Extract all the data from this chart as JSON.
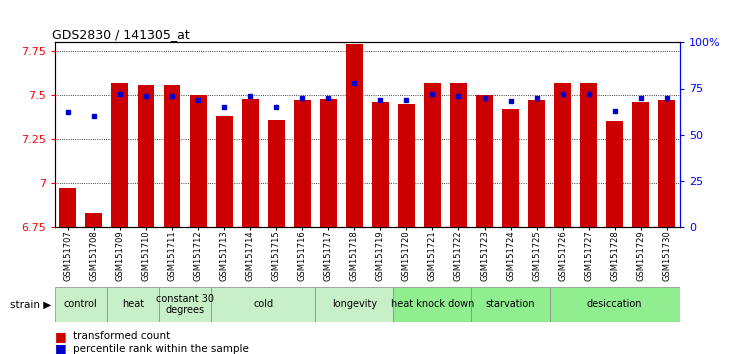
{
  "title": "GDS2830 / 141305_at",
  "samples": [
    "GSM151707",
    "GSM151708",
    "GSM151709",
    "GSM151710",
    "GSM151711",
    "GSM151712",
    "GSM151713",
    "GSM151714",
    "GSM151715",
    "GSM151716",
    "GSM151717",
    "GSM151718",
    "GSM151719",
    "GSM151720",
    "GSM151721",
    "GSM151722",
    "GSM151723",
    "GSM151724",
    "GSM151725",
    "GSM151726",
    "GSM151727",
    "GSM151728",
    "GSM151729",
    "GSM151730"
  ],
  "red_values": [
    6.97,
    6.83,
    7.57,
    7.56,
    7.56,
    7.5,
    7.38,
    7.48,
    7.36,
    7.47,
    7.48,
    7.79,
    7.46,
    7.45,
    7.57,
    7.57,
    7.5,
    7.42,
    7.47,
    7.57,
    7.57,
    7.35,
    7.46,
    7.47
  ],
  "blue_percentile": [
    62,
    60,
    72,
    71,
    71,
    69,
    65,
    71,
    65,
    70,
    70,
    78,
    69,
    69,
    72,
    71,
    70,
    68,
    70,
    72,
    72,
    63,
    70,
    70
  ],
  "y_min": 6.75,
  "y_max": 7.8,
  "y_ticks": [
    6.75,
    7.0,
    7.25,
    7.5,
    7.75
  ],
  "y_tick_labels": [
    "6.75",
    "7",
    "7.25",
    "7.5",
    "7.75"
  ],
  "right_y_ticks": [
    0,
    25,
    50,
    75,
    100
  ],
  "right_y_labels": [
    "0",
    "25",
    "50",
    "75",
    "100%"
  ],
  "groups": [
    {
      "label": "control",
      "start": 0,
      "end": 1,
      "color": "#c8f0c8"
    },
    {
      "label": "heat",
      "start": 2,
      "end": 3,
      "color": "#c8f0c8"
    },
    {
      "label": "constant 30\ndegrees",
      "start": 4,
      "end": 5,
      "color": "#c8f0c8"
    },
    {
      "label": "cold",
      "start": 6,
      "end": 9,
      "color": "#c8f0c8"
    },
    {
      "label": "longevity",
      "start": 10,
      "end": 12,
      "color": "#c8f0c8"
    },
    {
      "label": "heat knock down",
      "start": 13,
      "end": 15,
      "color": "#90ee90"
    },
    {
      "label": "starvation",
      "start": 16,
      "end": 18,
      "color": "#90ee90"
    },
    {
      "label": "desiccation",
      "start": 19,
      "end": 23,
      "color": "#90ee90"
    }
  ],
  "bar_color": "#cc0000",
  "dot_color": "#0000cc",
  "bar_width": 0.65
}
